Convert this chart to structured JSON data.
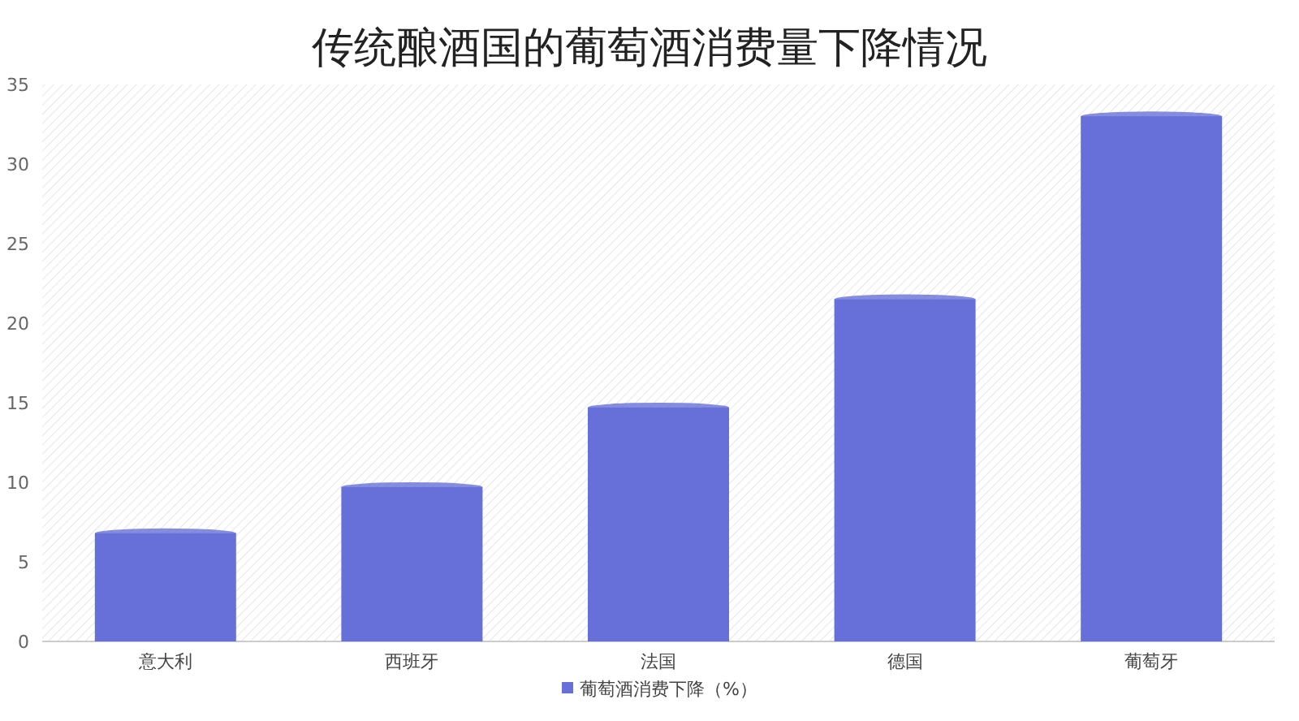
{
  "chart_data": {
    "type": "bar",
    "title": "传统酿酒国的葡萄酒消费量下降情况",
    "categories": [
      "意大利",
      "西班牙",
      "法国",
      "德国",
      "葡萄牙"
    ],
    "series": [
      {
        "name": "葡萄酒消费下降（%）",
        "color": "#6670d8",
        "values": [
          6.8,
          9.7,
          14.7,
          21.5,
          33.0
        ]
      }
    ],
    "ylim": [
      0,
      35
    ],
    "yticks": [
      0,
      5,
      10,
      15,
      20,
      25,
      30,
      35
    ],
    "legend": "bottom"
  }
}
